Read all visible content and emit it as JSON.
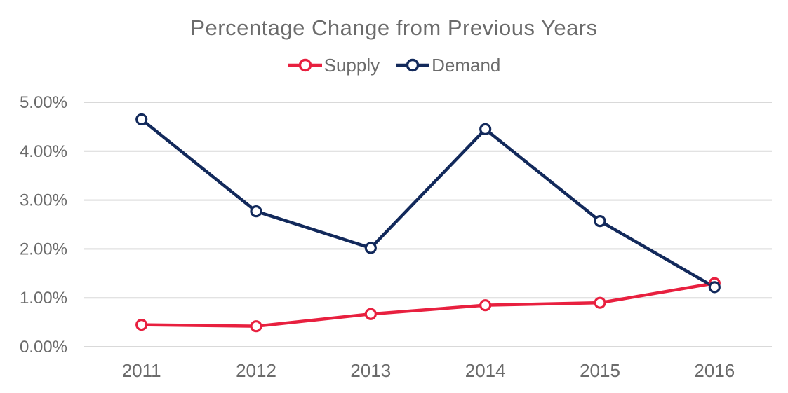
{
  "title": "Percentage Change from Previous Years",
  "chart_data": {
    "type": "line",
    "title": "Percentage Change from Previous Years",
    "categories": [
      "2011",
      "2012",
      "2013",
      "2014",
      "2015",
      "2016"
    ],
    "series": [
      {
        "name": "Supply",
        "color": "#e8203f",
        "values": [
          0.45,
          0.42,
          0.67,
          0.85,
          0.9,
          1.3
        ]
      },
      {
        "name": "Demand",
        "color": "#12295b",
        "values": [
          4.65,
          2.77,
          2.02,
          4.45,
          2.57,
          1.22
        ]
      }
    ],
    "xlabel": "",
    "ylabel": "",
    "ylim": [
      0,
      5
    ],
    "ytick_step": 1,
    "ytick_labels": [
      "0.00%",
      "1.00%",
      "2.00%",
      "3.00%",
      "4.00%",
      "5.00%"
    ],
    "grid": true,
    "legend_position": "top",
    "marker": "open-circle"
  },
  "colors": {
    "grid": "#d9d9d9",
    "text": "#6b6b6b",
    "background": "#ffffff"
  }
}
